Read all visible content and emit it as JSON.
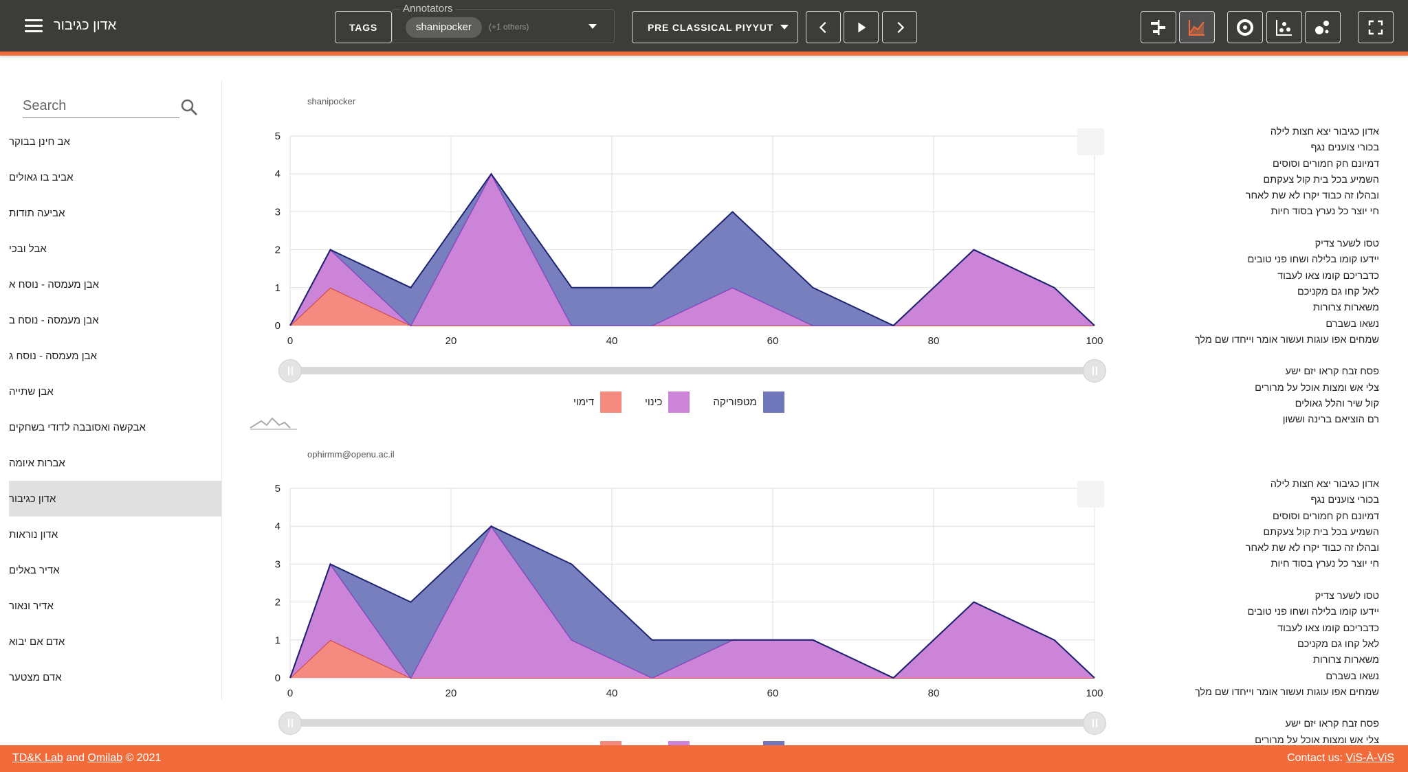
{
  "header": {
    "title": "אדון כגיבור",
    "tags_label": "TAGS",
    "annotators_label": "Annotators",
    "annotator_chip": "shanipocker",
    "annotator_others": "(+1 others)",
    "corpus_label": "PRE CLASSICAL PIYYUT"
  },
  "icons": {
    "menu": "menu-icon",
    "prev": "chevron-left-icon",
    "play": "play-icon",
    "next": "chevron-right-icon",
    "view1": "timeline-icon",
    "view2": "area-chart-icon",
    "view3": "donut-icon",
    "view4": "scatter-icon",
    "view5": "bubble-icon",
    "fullscreen": "fullscreen-icon",
    "search": "search-icon"
  },
  "colors": {
    "header_bg": "#3c3c38",
    "accent": "#f26b3a",
    "simile": "#f48a80",
    "metonymy": "#cc84d8",
    "metaphor": "#7078bb"
  },
  "sidebar": {
    "search_placeholder": "Search",
    "items": [
      {
        "label": "אב חינן בבוקר",
        "selected": false
      },
      {
        "label": "אביב בו גאולים",
        "selected": false
      },
      {
        "label": "אביעה תודות",
        "selected": false
      },
      {
        "label": "אבל ובכי",
        "selected": false
      },
      {
        "label": "אבן מעמסה - נוסח א",
        "selected": false
      },
      {
        "label": "אבן מעמסה - נוסח ב",
        "selected": false
      },
      {
        "label": "אבן מעמסה - נוסח ג",
        "selected": false
      },
      {
        "label": "אבן שתייה",
        "selected": false
      },
      {
        "label": "אבקשה ואסובבה לדודי בשחקים",
        "selected": false
      },
      {
        "label": "אברות איומה",
        "selected": false
      },
      {
        "label": "אדון כגיבור",
        "selected": true
      },
      {
        "label": "אדון נוראות",
        "selected": false
      },
      {
        "label": "אדיר באלים",
        "selected": false
      },
      {
        "label": "אדיר ונאור",
        "selected": false
      },
      {
        "label": "אדם אם יבוא",
        "selected": false
      },
      {
        "label": "אדם מצטער",
        "selected": false
      }
    ]
  },
  "legend": [
    {
      "label": "דימוי",
      "color": "#f48a80"
    },
    {
      "label": "כינוי",
      "color": "#cc84d8"
    },
    {
      "label": "מטפוריקה",
      "color": "#7078bb"
    }
  ],
  "panels": [
    {
      "annotator": "shanipocker",
      "lyrics": [
        "אדון כגיבור יצא חצות לילה",
        "בכורי צוענים נגף",
        "דמיונם חק חמורים וסוסים",
        "השמיע בכל בית קול צעקתם",
        "ובהלו זה כבוד יקרו לא שת לאחר",
        "חי יוצר כל נערץ בסוד חיות",
        "",
        "טסו לשער צדיק",
        "יידעו קומו בלילה ושחו פני טובים",
        "כדבריכם קומו צאו לעבוד",
        "לאל קחו גם מקניכם",
        "משארות צרורות",
        "נשאו בשברם",
        "שמחים אפו עוגות ועשור אומר וייחדו שם מלך",
        "",
        "פסח זבח קראו יזם ישע",
        "צלי אש ומצות אוכל על מרורים",
        "קול שיר והלל גאולים",
        "רם הוציאם ברינה וששון"
      ]
    },
    {
      "annotator": "ophirmm@openu.ac.il",
      "lyrics": [
        "אדון כגיבור יצא חצות לילה",
        "בכורי צוענים נגף",
        "דמיונם חק חמורים וסוסים",
        "השמיע בכל בית קול צעקתם",
        "ובהלו זה כבוד יקרו לא שת לאחר",
        "חי יוצר כל נערץ בסוד חיות",
        "",
        "טסו לשער צדיק",
        "יידעו קומו בלילה ושחו פני טובים",
        "כדבריכם קומו צאו לעבוד",
        "לאל קחו גם מקניכם",
        "משארות צרורות",
        "נשאו בשברם",
        "שמחים אפו עוגות ועשור אומר וייחדו שם מלך",
        "",
        "פסח זבח קראו יזם ישע",
        "צלי אש ומצות אוכל על מרורים"
      ]
    }
  ],
  "chart_data": [
    {
      "type": "area",
      "stacked": true,
      "x": [
        0,
        5,
        15,
        25,
        35,
        45,
        55,
        65,
        75,
        85,
        95,
        100
      ],
      "xlim": [
        0,
        100
      ],
      "ylim": [
        0,
        5
      ],
      "xticks": [
        0,
        20,
        40,
        60,
        80,
        100
      ],
      "yticks": [
        0,
        1,
        2,
        3,
        4,
        5
      ],
      "grid": true,
      "legend_position": "bottom",
      "series": [
        {
          "name": "דימוי",
          "values": [
            0,
            1,
            0,
            0,
            0,
            0,
            0,
            0,
            0,
            0,
            0,
            0
          ]
        },
        {
          "name": "כינוי",
          "values": [
            0,
            1,
            0,
            4,
            0,
            0,
            1,
            0,
            0,
            2,
            1,
            0
          ]
        },
        {
          "name": "מטפוריקה",
          "values": [
            0,
            0,
            1,
            0,
            1,
            1,
            2,
            1,
            0,
            0,
            0,
            0
          ]
        }
      ]
    },
    {
      "type": "area",
      "stacked": true,
      "x": [
        0,
        5,
        15,
        25,
        35,
        45,
        55,
        65,
        75,
        85,
        95,
        100
      ],
      "xlim": [
        0,
        100
      ],
      "ylim": [
        0,
        5
      ],
      "xticks": [
        0,
        20,
        40,
        60,
        80,
        100
      ],
      "yticks": [
        0,
        1,
        2,
        3,
        4,
        5
      ],
      "grid": true,
      "legend_position": "bottom",
      "series": [
        {
          "name": "דימוי",
          "values": [
            0,
            1,
            0,
            0,
            0,
            0,
            0,
            0,
            0,
            0,
            0,
            0
          ]
        },
        {
          "name": "כינוי",
          "values": [
            0,
            2,
            0,
            4,
            1,
            0,
            1,
            1,
            0,
            2,
            1,
            0
          ]
        },
        {
          "name": "מטפוריקה",
          "values": [
            0,
            0,
            2,
            0,
            2,
            1,
            0,
            0,
            0,
            0,
            0,
            0
          ]
        }
      ]
    }
  ],
  "footer": {
    "lab_link": "TD&K Lab",
    "and_text": "and",
    "omilab_link": "Omilab",
    "copyright": "© 2021",
    "contact_label": "Contact us:",
    "contact_link": "ViS-À-ViS"
  }
}
